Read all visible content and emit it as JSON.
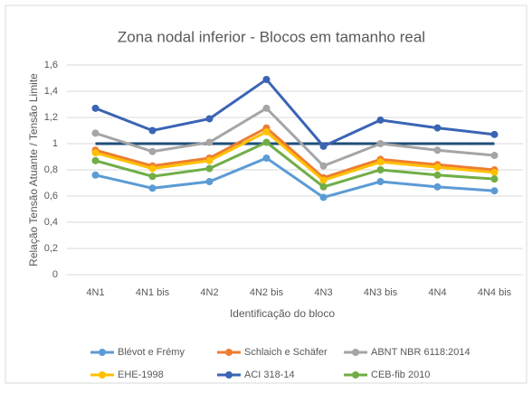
{
  "chart_data": {
    "type": "line",
    "title": "Zona nodal inferior - Blocos em tamanho real",
    "x_label": "Identificação do bloco",
    "y_label": "Relação Tensão Atuante / Tensão Limite",
    "categories": [
      "4N1",
      "4N1 bis",
      "4N2",
      "4N2 bis",
      "4N3",
      "4N3 bis",
      "4N4",
      "4N4 bis"
    ],
    "ylim": [
      0,
      1.6
    ],
    "yticks": [
      0,
      {
        "value": 0.2,
        "label": "0,2"
      },
      {
        "value": 0.4,
        "label": "0,4"
      },
      {
        "value": 0.6,
        "label": "0,6"
      },
      {
        "value": 0.8,
        "label": "0,8"
      },
      1,
      {
        "value": 1.2,
        "label": "1,2"
      },
      {
        "value": 1.4,
        "label": "1,4"
      },
      {
        "value": 1.6,
        "label": "1,6"
      }
    ],
    "grid": true,
    "reference_line": {
      "value": 1,
      "color": "#1f4e79"
    },
    "series": [
      {
        "name": "Blévot e Frémy",
        "color": "#5b9bd5",
        "values": [
          0.76,
          0.66,
          0.71,
          0.89,
          0.59,
          0.71,
          0.67,
          0.64
        ]
      },
      {
        "name": "Schlaich e Schäfer",
        "color": "#ed7d31",
        "values": [
          0.95,
          0.83,
          0.89,
          1.12,
          0.74,
          0.88,
          0.84,
          0.8
        ]
      },
      {
        "name": "ABNT NBR 6118:2014",
        "color": "#a5a5a5",
        "values": [
          1.08,
          0.94,
          1.01,
          1.27,
          0.83,
          1.0,
          0.95,
          0.91
        ]
      },
      {
        "name": "EHE-1998",
        "color": "#ffc000",
        "values": [
          0.93,
          0.81,
          0.87,
          1.09,
          0.72,
          0.86,
          0.82,
          0.78
        ]
      },
      {
        "name": "ACI 318-14",
        "color": "#3a64b4",
        "values": [
          1.27,
          1.1,
          1.19,
          1.49,
          0.98,
          1.18,
          1.12,
          1.07
        ]
      },
      {
        "name": "CEB-fib 2010",
        "color": "#70ad47",
        "values": [
          0.87,
          0.75,
          0.81,
          1.01,
          0.67,
          0.8,
          0.76,
          0.73
        ]
      }
    ]
  }
}
